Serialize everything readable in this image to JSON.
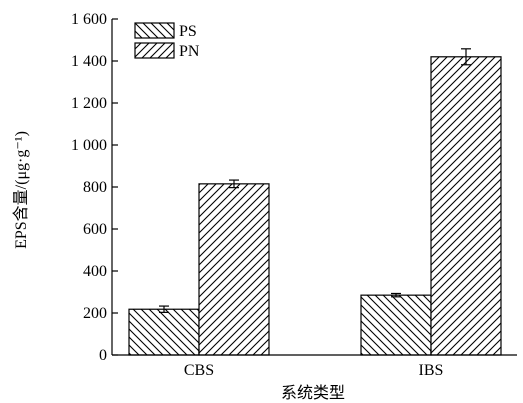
{
  "chart_data": {
    "type": "bar",
    "title": "",
    "xlabel": "系统类型",
    "ylabel": "EPS含量/(μg·g⁻¹)",
    "ylim": [
      0,
      1600
    ],
    "yticks": [
      0,
      200,
      400,
      600,
      800,
      1000,
      1200,
      1400,
      1600
    ],
    "ytick_labels": [
      "0",
      "200",
      "400",
      "600",
      "800",
      "1 000",
      "1 200",
      "1 400",
      "1 600"
    ],
    "categories": [
      "CBS",
      "IBS"
    ],
    "series": [
      {
        "name": "PS",
        "values": [
          218,
          285
        ],
        "errors": [
          15,
          8
        ],
        "pattern": "back-diagonal-hatch"
      },
      {
        "name": "PN",
        "values": [
          815,
          1420
        ],
        "errors": [
          18,
          38
        ],
        "pattern": "forward-diagonal-hatch"
      }
    ],
    "legend_position": "top-left",
    "grid": false
  }
}
